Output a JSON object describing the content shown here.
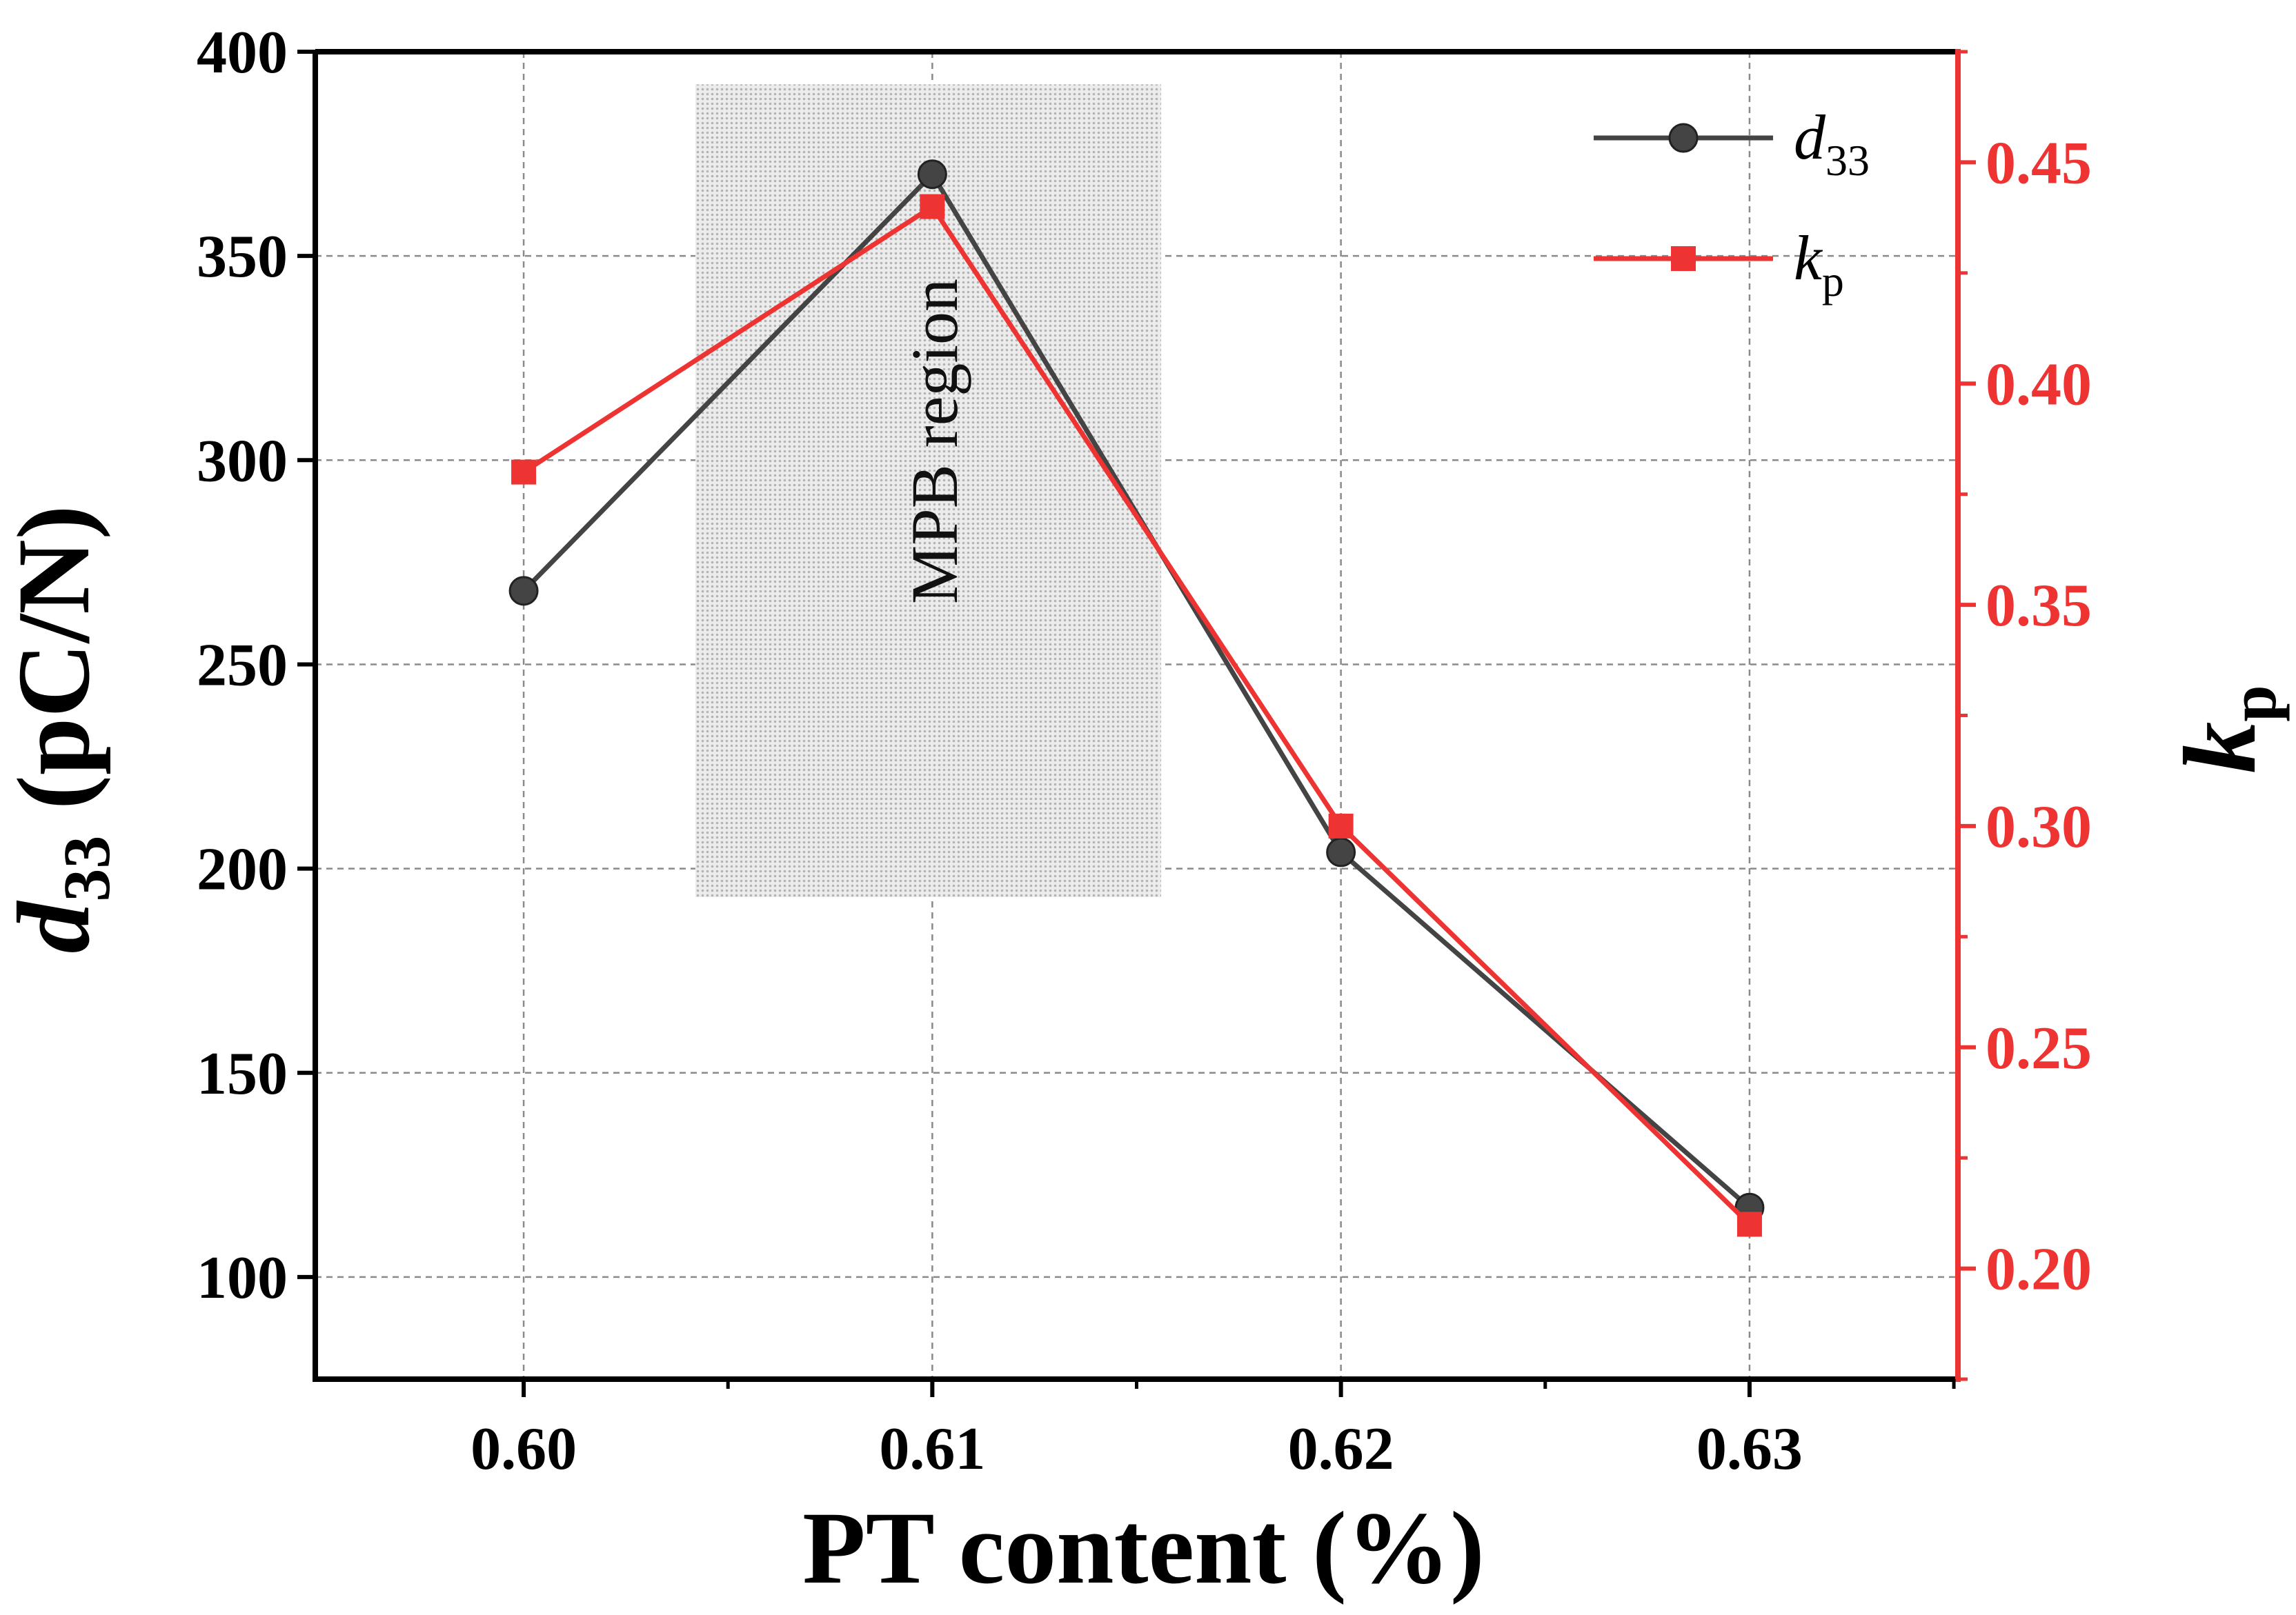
{
  "chart_data": {
    "type": "line",
    "x": [
      0.6,
      0.61,
      0.62,
      0.63
    ],
    "x_tick_labels": [
      "0.60",
      "0.61",
      "0.62",
      "0.63"
    ],
    "xlabel": "PT content (%)",
    "xlim": [
      0.5949,
      0.6351
    ],
    "left_axis": {
      "label_symbol": "d",
      "label_sub": "33",
      "label_unit": " (pC/N)",
      "ylim": [
        75,
        400
      ],
      "ticks": [
        100,
        150,
        200,
        250,
        300,
        350,
        400
      ],
      "tick_labels": [
        "100",
        "150",
        "200",
        "250",
        "300",
        "350",
        "400"
      ]
    },
    "right_axis": {
      "label_symbol": "k",
      "label_sub": "p",
      "ylim": [
        0.175,
        0.475
      ],
      "ticks": [
        0.2,
        0.25,
        0.3,
        0.35,
        0.4,
        0.45
      ],
      "tick_labels": [
        "0.20",
        "0.25",
        "0.30",
        "0.35",
        "0.40",
        "0.45"
      ],
      "color": "#ee3333"
    },
    "series": [
      {
        "name_symbol": "d",
        "name_sub": "33",
        "axis": "left",
        "color": "#444444",
        "marker": "circle",
        "values": [
          268,
          370,
          204,
          117
        ]
      },
      {
        "name_symbol": "k",
        "name_sub": "p",
        "axis": "right",
        "color": "#ee3333",
        "marker": "square",
        "values": [
          0.38,
          0.44,
          0.3,
          0.21
        ]
      }
    ],
    "shaded_region": {
      "x_range": [
        0.6042,
        0.6156
      ],
      "y_range": [
        193,
        392
      ],
      "label": "MPB region"
    },
    "grid": true,
    "legend_position": "top-right"
  }
}
